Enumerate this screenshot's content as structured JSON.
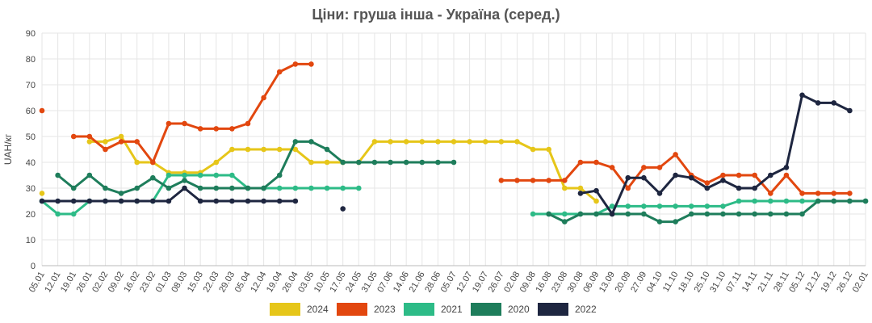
{
  "chart_data": {
    "type": "line",
    "title": "Ціни: груша інша - Україна (серед.)",
    "ylabel": "UAH/кг",
    "xlabel": "",
    "ylim": [
      0,
      90
    ],
    "yticks": [
      0,
      10,
      20,
      30,
      40,
      50,
      60,
      70,
      80,
      90
    ],
    "grid": true,
    "legend_position": "bottom",
    "categories": [
      "05.01",
      "12.01",
      "19.01",
      "26.01",
      "02.02",
      "09.02",
      "16.02",
      "23.02",
      "01.03",
      "08.03",
      "15.03",
      "22.03",
      "29.03",
      "05.04",
      "12.04",
      "19.04",
      "26.04",
      "03.05",
      "10.05",
      "17.05",
      "24.05",
      "31.05",
      "07.06",
      "14.06",
      "21.06",
      "28.06",
      "05.07",
      "12.07",
      "19.07",
      "26.07",
      "02.08",
      "09.08",
      "16.08",
      "23.08",
      "30.08",
      "06.09",
      "13.09",
      "20.09",
      "27.09",
      "04.10",
      "11.10",
      "18.10",
      "25.10",
      "31.10",
      "07.11",
      "14.11",
      "21.11",
      "28.11",
      "05.12",
      "12.12",
      "19.12",
      "26.12",
      "02.01"
    ],
    "series": [
      {
        "name": "2024",
        "color": "#e6c619",
        "points": [
          [
            0,
            28
          ],
          [
            3,
            48
          ],
          [
            4,
            48
          ],
          [
            5,
            50
          ],
          [
            6,
            40
          ],
          [
            7,
            40
          ],
          [
            8,
            36
          ],
          [
            9,
            36
          ],
          [
            10,
            36
          ],
          [
            11,
            40
          ],
          [
            12,
            45
          ],
          [
            13,
            45
          ],
          [
            14,
            45
          ],
          [
            15,
            45
          ],
          [
            16,
            45
          ],
          [
            17,
            40
          ],
          [
            18,
            40
          ],
          [
            19,
            40
          ],
          [
            20,
            40
          ],
          [
            21,
            48
          ],
          [
            22,
            48
          ],
          [
            23,
            48
          ],
          [
            24,
            48
          ],
          [
            25,
            48
          ],
          [
            26,
            48
          ],
          [
            27,
            48
          ],
          [
            28,
            48
          ],
          [
            29,
            48
          ],
          [
            30,
            48
          ],
          [
            31,
            45
          ],
          [
            32,
            45
          ],
          [
            33,
            30
          ],
          [
            34,
            30
          ],
          [
            35,
            25
          ]
        ]
      },
      {
        "name": "2023",
        "color": "#e2470f",
        "points": [
          [
            0,
            60
          ],
          [
            2,
            50
          ],
          [
            3,
            50
          ],
          [
            4,
            45
          ],
          [
            5,
            48
          ],
          [
            6,
            48
          ],
          [
            7,
            40
          ],
          [
            8,
            55
          ],
          [
            9,
            55
          ],
          [
            10,
            53
          ],
          [
            11,
            53
          ],
          [
            12,
            53
          ],
          [
            13,
            55
          ],
          [
            14,
            65
          ],
          [
            15,
            75
          ],
          [
            16,
            78
          ],
          [
            17,
            78
          ],
          [
            29,
            33
          ],
          [
            30,
            33
          ],
          [
            31,
            33
          ],
          [
            32,
            33
          ],
          [
            33,
            33
          ],
          [
            34,
            40
          ],
          [
            35,
            40
          ],
          [
            36,
            38
          ],
          [
            37,
            30
          ],
          [
            38,
            38
          ],
          [
            39,
            38
          ],
          [
            40,
            43
          ],
          [
            41,
            35
          ],
          [
            42,
            32
          ],
          [
            43,
            35
          ],
          [
            44,
            35
          ],
          [
            45,
            35
          ],
          [
            46,
            28
          ],
          [
            47,
            35
          ],
          [
            48,
            28
          ],
          [
            49,
            28
          ],
          [
            50,
            28
          ],
          [
            51,
            28
          ]
        ]
      },
      {
        "name": "2021",
        "color": "#2dbb87",
        "points": [
          [
            0,
            25
          ],
          [
            1,
            20
          ],
          [
            2,
            20
          ],
          [
            3,
            25
          ],
          [
            4,
            25
          ],
          [
            5,
            25
          ],
          [
            6,
            25
          ],
          [
            7,
            25
          ],
          [
            8,
            35
          ],
          [
            9,
            35
          ],
          [
            10,
            35
          ],
          [
            11,
            35
          ],
          [
            12,
            35
          ],
          [
            13,
            30
          ],
          [
            14,
            30
          ],
          [
            15,
            30
          ],
          [
            16,
            30
          ],
          [
            17,
            30
          ],
          [
            18,
            30
          ],
          [
            19,
            30
          ],
          [
            20,
            30
          ],
          [
            31,
            20
          ],
          [
            32,
            20
          ],
          [
            33,
            20
          ],
          [
            34,
            20
          ],
          [
            35,
            20
          ],
          [
            36,
            23
          ],
          [
            37,
            23
          ],
          [
            38,
            23
          ],
          [
            39,
            23
          ],
          [
            40,
            23
          ],
          [
            41,
            23
          ],
          [
            42,
            23
          ],
          [
            43,
            23
          ],
          [
            44,
            25
          ],
          [
            45,
            25
          ],
          [
            46,
            25
          ],
          [
            47,
            25
          ],
          [
            48,
            25
          ],
          [
            49,
            25
          ],
          [
            50,
            25
          ],
          [
            51,
            25
          ],
          [
            52,
            25
          ]
        ]
      },
      {
        "name": "2020",
        "color": "#1e7d5b",
        "points": [
          [
            1,
            35
          ],
          [
            2,
            30
          ],
          [
            3,
            35
          ],
          [
            4,
            30
          ],
          [
            5,
            28
          ],
          [
            6,
            30
          ],
          [
            7,
            34
          ],
          [
            8,
            30
          ],
          [
            9,
            33
          ],
          [
            10,
            30
          ],
          [
            11,
            30
          ],
          [
            12,
            30
          ],
          [
            13,
            30
          ],
          [
            14,
            30
          ],
          [
            15,
            35
          ],
          [
            16,
            48
          ],
          [
            17,
            48
          ],
          [
            18,
            45
          ],
          [
            19,
            40
          ],
          [
            20,
            40
          ],
          [
            21,
            40
          ],
          [
            22,
            40
          ],
          [
            23,
            40
          ],
          [
            24,
            40
          ],
          [
            25,
            40
          ],
          [
            26,
            40
          ],
          [
            32,
            20
          ],
          [
            33,
            17
          ],
          [
            34,
            20
          ],
          [
            35,
            20
          ],
          [
            36,
            20
          ],
          [
            37,
            20
          ],
          [
            38,
            20
          ],
          [
            39,
            17
          ],
          [
            40,
            17
          ],
          [
            41,
            20
          ],
          [
            42,
            20
          ],
          [
            43,
            20
          ],
          [
            44,
            20
          ],
          [
            45,
            20
          ],
          [
            46,
            20
          ],
          [
            47,
            20
          ],
          [
            48,
            20
          ],
          [
            49,
            25
          ],
          [
            50,
            25
          ],
          [
            51,
            25
          ],
          [
            52,
            25
          ]
        ]
      },
      {
        "name": "2022",
        "color": "#1e2640",
        "points": [
          [
            0,
            25
          ],
          [
            1,
            25
          ],
          [
            2,
            25
          ],
          [
            3,
            25
          ],
          [
            4,
            25
          ],
          [
            5,
            25
          ],
          [
            6,
            25
          ],
          [
            7,
            25
          ],
          [
            8,
            25
          ],
          [
            9,
            30
          ],
          [
            10,
            25
          ],
          [
            11,
            25
          ],
          [
            12,
            25
          ],
          [
            13,
            25
          ],
          [
            14,
            25
          ],
          [
            15,
            25
          ],
          [
            16,
            25
          ],
          [
            19,
            22
          ],
          [
            34,
            28
          ],
          [
            35,
            29
          ],
          [
            36,
            20
          ],
          [
            37,
            34
          ],
          [
            38,
            34
          ],
          [
            39,
            28
          ],
          [
            40,
            35
          ],
          [
            41,
            34
          ],
          [
            42,
            30
          ],
          [
            43,
            33
          ],
          [
            44,
            30
          ],
          [
            45,
            30
          ],
          [
            46,
            35
          ],
          [
            47,
            38
          ],
          [
            48,
            66
          ],
          [
            49,
            63
          ],
          [
            50,
            63
          ],
          [
            51,
            60
          ]
        ]
      }
    ]
  }
}
